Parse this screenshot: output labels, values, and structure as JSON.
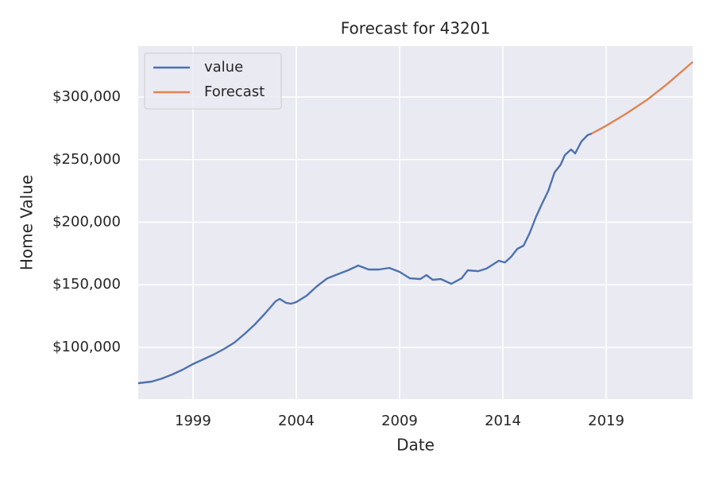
{
  "chart_data": {
    "type": "line",
    "title": "Forecast for 43201",
    "x_label": "Date",
    "y_label": "Home Value",
    "xlim": [
      1996.35,
      2023.19
    ],
    "xticks": [
      1999,
      2004,
      2009,
      2014,
      2019
    ],
    "ylim": [
      58730,
      340635
    ],
    "yticks": [
      {
        "value": 100000,
        "label": "$100,000"
      },
      {
        "value": 150000,
        "label": "$150,000"
      },
      {
        "value": 200000,
        "label": "$200,000"
      },
      {
        "value": 250000,
        "label": "$250,000"
      },
      {
        "value": 300000,
        "label": "$300,000"
      }
    ],
    "grid": true,
    "legend": "upper-left",
    "series": [
      {
        "name": "value",
        "color": "#4c72b0",
        "x": [
          1996.35,
          1997.0,
          1997.5,
          1998.0,
          1998.5,
          1999.0,
          1999.5,
          2000.0,
          2000.5,
          2001.0,
          2001.5,
          2002.0,
          2002.5,
          2003.0,
          2003.2,
          2003.5,
          2003.75,
          2004.0,
          2004.5,
          2005.0,
          2005.5,
          2006.0,
          2006.5,
          2007.0,
          2007.5,
          2008.0,
          2008.5,
          2009.0,
          2009.5,
          2010.0,
          2010.3,
          2010.6,
          2011.0,
          2011.5,
          2012.0,
          2012.3,
          2012.8,
          2013.2,
          2013.5,
          2013.8,
          2014.1,
          2014.4,
          2014.7,
          2015.0,
          2015.3,
          2015.6,
          2015.9,
          2016.2,
          2016.5,
          2016.8,
          2017.0,
          2017.3,
          2017.5,
          2017.8,
          2018.1,
          2018.3
        ],
        "values": [
          71400,
          72700,
          75200,
          78400,
          82200,
          86700,
          90500,
          94300,
          98700,
          103800,
          110800,
          118400,
          127300,
          136800,
          138700,
          135600,
          134900,
          136200,
          141300,
          148900,
          155200,
          158400,
          161600,
          165400,
          162200,
          162200,
          163500,
          160300,
          155200,
          154600,
          157800,
          154000,
          154600,
          150800,
          155200,
          161600,
          160900,
          162900,
          166000,
          169200,
          167900,
          172400,
          178700,
          181300,
          191400,
          204100,
          214900,
          225100,
          239700,
          246000,
          253600,
          258100,
          254900,
          264400,
          269500,
          270800
        ]
      },
      {
        "name": "Forecast",
        "color": "#dd8452",
        "x": [
          2018.3,
          2019.0,
          2020.0,
          2021.0,
          2022.0,
          2023.19
        ],
        "values": [
          270800,
          277000,
          287000,
          298000,
          311000,
          328000
        ]
      }
    ]
  }
}
